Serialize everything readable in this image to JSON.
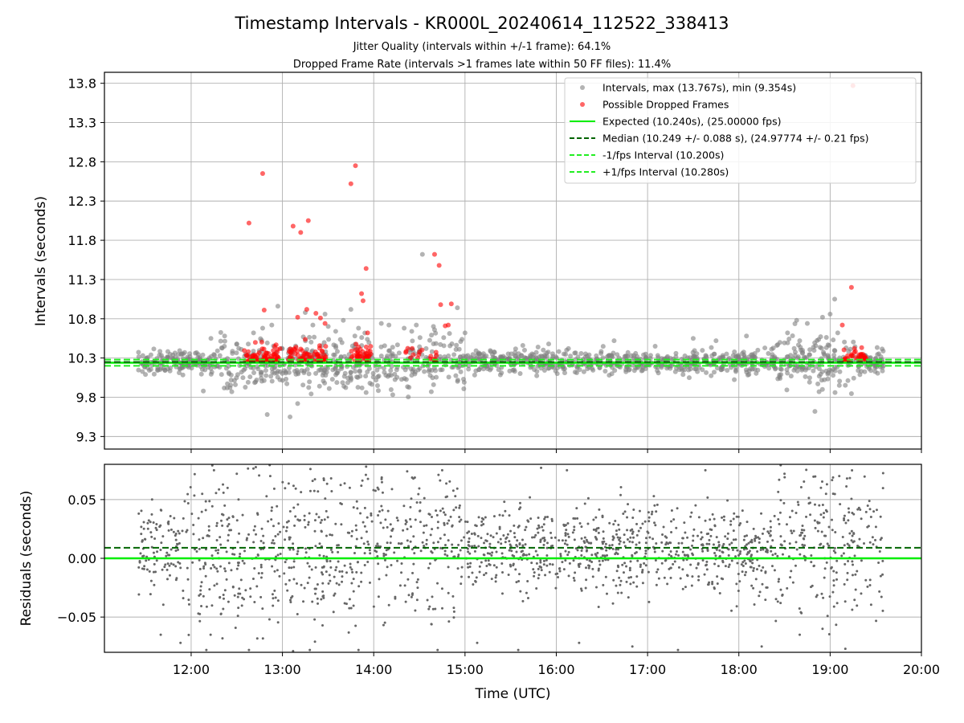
{
  "title": "Timestamp Intervals - KR000L_20240614_112522_338413",
  "subtitle_jitter": "Jitter Quality (intervals within +/-1 frame): 64.1%",
  "subtitle_dropped": "Dropped Frame Rate (intervals >1 frames late within 50 FF files): 11.4%",
  "colors": {
    "intervals": "#808080",
    "dropped": "#ff0000",
    "expected": "#00ee00",
    "median": "#006400",
    "fps_band": "#22ee22",
    "residuals": "#666666",
    "grid": "#b0b0b0"
  },
  "chart_data": [
    {
      "type": "scatter",
      "panel": "top",
      "ylabel": "Intervals (seconds)",
      "xlim": [
        "11:03",
        "20:00"
      ],
      "ylim": [
        9.14,
        13.94
      ],
      "yticks": [
        "9.3",
        "9.8",
        "10.3",
        "10.8",
        "11.3",
        "11.8",
        "12.3",
        "12.8",
        "13.3",
        "13.8"
      ],
      "grid": true,
      "legend_position": "top-right",
      "legend": [
        "Intervals, max (13.767s), min (9.354s)",
        "Possible Dropped Frames",
        "Expected (10.240s), (25.00000 fps)",
        "Median (10.249 +/- 0.088 s), (24.97774 +/- 0.21 fps)",
        "-1/fps Interval (10.200s)",
        "+1/fps Interval (10.280s)"
      ],
      "expected": 10.24,
      "median": 10.249,
      "minus_fps": 10.2,
      "plus_fps": 10.28,
      "data_range": [
        "11:25",
        "19:35"
      ],
      "intervals_max": 13.767,
      "intervals_min": 9.354,
      "series": [
        {
          "name": "Intervals, max (13.767s), min (9.354s)",
          "x": [
            "12:08",
            "12:13",
            "12:22",
            "12:41",
            "12:47",
            "12:50",
            "12:53",
            "12:57",
            "13:05",
            "13:10",
            "13:15",
            "13:20",
            "13:28",
            "13:35",
            "13:40",
            "13:45",
            "13:50",
            "13:55",
            "14:05",
            "14:10",
            "14:20",
            "14:25",
            "14:28",
            "14:32",
            "14:40",
            "14:46",
            "14:55",
            "15:00",
            "15:38",
            "15:48",
            "15:55",
            "16:08",
            "16:38",
            "17:05",
            "17:30",
            "17:45",
            "18:05",
            "18:25",
            "18:32",
            "18:40",
            "18:45",
            "18:55",
            "19:00",
            "19:03",
            "19:05",
            "18:38",
            "18:50"
          ],
          "y": [
            9.88,
            10.55,
            10.58,
            10.62,
            10.68,
            9.58,
            10.72,
            10.96,
            9.55,
            9.72,
            10.88,
            10.72,
            10.86,
            10.64,
            10.78,
            10.92,
            10.68,
            9.86,
            10.74,
            10.72,
            10.68,
            10.64,
            10.72,
            11.62,
            10.66,
            10.56,
            10.94,
            10.62,
            10.46,
            10.44,
            10.48,
            10.42,
            10.52,
            10.45,
            10.55,
            10.52,
            10.58,
            10.46,
            10.62,
            10.52,
            10.74,
            10.82,
            10.86,
            11.05,
            10.62,
            10.78,
            9.62
          ]
        },
        {
          "name": "Possible Dropped Frames",
          "x": [
            "12:38",
            "12:47",
            "13:07",
            "13:12",
            "13:17",
            "13:45",
            "13:48",
            "13:52",
            "13:53",
            "13:55",
            "14:40",
            "14:43",
            "14:47",
            "14:51",
            "19:08",
            "19:14",
            "19:15",
            "12:48",
            "13:10",
            "13:16",
            "13:22",
            "13:25",
            "13:28",
            "13:50",
            "13:56",
            "14:44",
            "14:49",
            "19:16"
          ],
          "y": [
            12.02,
            12.65,
            11.98,
            11.9,
            12.05,
            12.52,
            12.75,
            11.12,
            11.03,
            11.44,
            11.62,
            11.48,
            10.71,
            10.99,
            10.72,
            11.2,
            13.77,
            10.91,
            10.82,
            10.92,
            10.87,
            10.81,
            10.74,
            10.44,
            10.62,
            10.98,
            10.72,
            10.42
          ]
        }
      ]
    },
    {
      "type": "scatter",
      "panel": "bottom",
      "ylabel": "Residuals (seconds)",
      "xlabel": "Time (UTC)",
      "xlim": [
        "11:03",
        "20:00"
      ],
      "ylim": [
        -0.08,
        0.08
      ],
      "xticks": [
        "12:00",
        "13:00",
        "14:00",
        "15:00",
        "16:00",
        "17:00",
        "18:00",
        "19:00",
        "20:00"
      ],
      "yticks": [
        "0.05",
        "0.00",
        "−0.05"
      ],
      "grid": true,
      "zero_line": 0.0,
      "median_line": 0.009,
      "data_range": [
        "11:25",
        "19:35"
      ],
      "series": [
        {
          "name": "",
          "x": [
            "11:40",
            "11:53",
            "12:10",
            "12:15",
            "12:30",
            "12:38",
            "12:52",
            "13:07",
            "13:18",
            "13:32",
            "13:50",
            "13:55",
            "14:22",
            "14:42",
            "14:45",
            "15:08",
            "15:35",
            "15:50",
            "16:07",
            "16:15",
            "16:50",
            "17:20",
            "17:38",
            "18:15",
            "18:30",
            "18:40",
            "18:55",
            "19:02",
            "19:06",
            "19:10"
          ],
          "y": [
            -0.065,
            -0.072,
            -0.078,
            0.075,
            0.072,
            -0.078,
            0.07,
            -0.079,
            -0.078,
            0.068,
            -0.078,
            0.078,
            0.074,
            -0.078,
            0.075,
            -0.072,
            -0.078,
            0.077,
            0.075,
            -0.072,
            -0.075,
            -0.078,
            0.075,
            -0.075,
            0.072,
            -0.065,
            -0.06,
            0.055,
            0.07,
            -0.077
          ]
        }
      ]
    }
  ]
}
